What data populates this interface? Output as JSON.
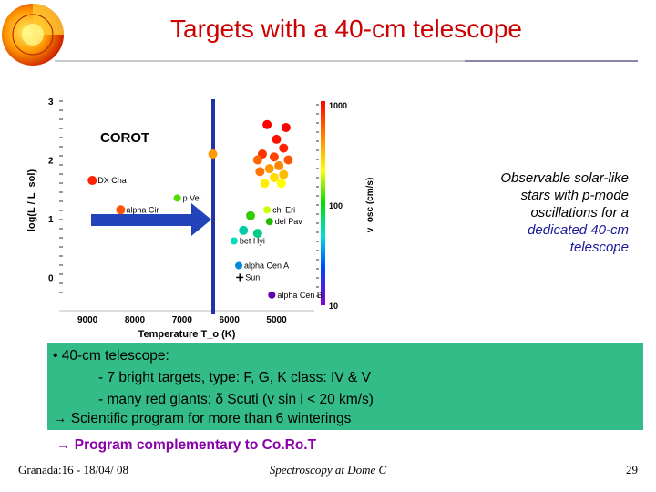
{
  "title": "Targets with a 40-cm telescope",
  "logo_icon": "sun-cutaway-icon",
  "chart_data": {
    "type": "scatter",
    "xlabel": "Temperature T_o (K)",
    "ylabel": "log(L / L_sol)",
    "y2label": "v_osc (cm/s)",
    "x_ticks": [
      "9000",
      "8000",
      "7000",
      "6000",
      "5000"
    ],
    "y_ticks": [
      "3",
      "2",
      "1",
      "0"
    ],
    "colorbar_ticks": [
      "1000",
      "100",
      "10"
    ],
    "x_range": [
      9600,
      4200
    ],
    "y_range": [
      -0.35,
      3.0
    ],
    "label_corot": "COROT",
    "labeled_stars": [
      {
        "name": "DX Cha",
        "x": 8900,
        "y": 1.65,
        "color": "#ff2200"
      },
      {
        "name": "alpha Cir",
        "x": 8300,
        "y": 1.15,
        "color": "#ff5500"
      },
      {
        "name": "p Vel",
        "x": 7100,
        "y": 1.35,
        "color": "#55dd00"
      },
      {
        "name": "bet Hyi",
        "x": 5900,
        "y": 0.62,
        "color": "#00ddbb"
      },
      {
        "name": "alpha Cen A",
        "x": 5800,
        "y": 0.2,
        "color": "#0088dd"
      },
      {
        "name": "Sun",
        "x": 5777,
        "y": 0.0,
        "color": "#000000"
      },
      {
        "name": "chi Eri",
        "x": 5200,
        "y": 1.15,
        "color": "#ccff00"
      },
      {
        "name": "del Pav",
        "x": 5150,
        "y": 0.95,
        "color": "#22bb00"
      },
      {
        "name": "alpha Cen B",
        "x": 5100,
        "y": -0.3,
        "color": "#6600aa"
      }
    ],
    "other_points": [
      {
        "x": 5200,
        "y": 2.6,
        "color": "#ff0000"
      },
      {
        "x": 4800,
        "y": 2.55,
        "color": "#ff0000"
      },
      {
        "x": 5000,
        "y": 2.35,
        "color": "#ff1100"
      },
      {
        "x": 4850,
        "y": 2.2,
        "color": "#ff2200"
      },
      {
        "x": 5300,
        "y": 2.1,
        "color": "#ff3300"
      },
      {
        "x": 5050,
        "y": 2.05,
        "color": "#ff4400"
      },
      {
        "x": 4750,
        "y": 2.0,
        "color": "#ff5500"
      },
      {
        "x": 5400,
        "y": 2.0,
        "color": "#ff6600"
      },
      {
        "x": 4950,
        "y": 1.9,
        "color": "#ff8800"
      },
      {
        "x": 5150,
        "y": 1.85,
        "color": "#ff9900"
      },
      {
        "x": 4850,
        "y": 1.75,
        "color": "#ffbb00"
      },
      {
        "x": 5050,
        "y": 1.7,
        "color": "#ffdd00"
      },
      {
        "x": 5250,
        "y": 1.6,
        "color": "#ffee00"
      },
      {
        "x": 4900,
        "y": 1.6,
        "color": "#ffff00"
      },
      {
        "x": 5350,
        "y": 1.8,
        "color": "#ff7700"
      },
      {
        "x": 6350,
        "y": 2.1,
        "color": "#ff9900"
      },
      {
        "x": 5400,
        "y": 0.75,
        "color": "#00cc88"
      },
      {
        "x": 5700,
        "y": 0.8,
        "color": "#00ccaa"
      },
      {
        "x": 5550,
        "y": 1.05,
        "color": "#33cc00"
      }
    ]
  },
  "note": {
    "line1": "Observable solar-like",
    "line2": "stars with p-mode",
    "line3": "oscillations for a",
    "line4": "dedicated 40-cm",
    "line5": "telescope"
  },
  "box": {
    "line1": "• 40-cm telescope:",
    "line2": "- 7 bright targets, type: F, G, K class: IV & V",
    "line3": "- many red giants; δ Scuti (v sin i < 20 km/s)",
    "line4": "→ Scientific program for more than 6 winterings"
  },
  "bottom_line": "→ Program complementary to Co.Ro.T",
  "footer": {
    "left": "Granada:16 - 18/04/ 08",
    "center": "Spectroscopy at Dome C",
    "page": "29"
  }
}
